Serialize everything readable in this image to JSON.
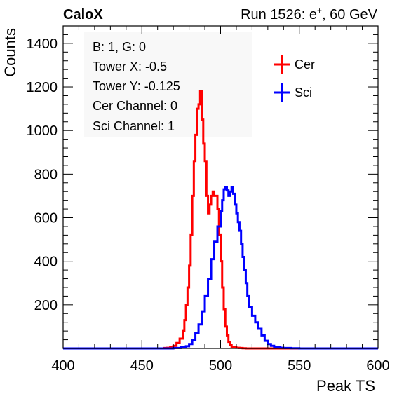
{
  "header": {
    "left": "CaloX",
    "right_pre": "Run 1526: e",
    "right_sup": "+",
    "right_post": ", 60 GeV"
  },
  "info_box": {
    "lines": [
      "B: 1, G: 0",
      "Tower X: -0.5",
      "Tower Y: -0.125",
      "Cer Channel: 0",
      "Sci Channel: 1"
    ]
  },
  "chart_data": {
    "type": "line",
    "title": "",
    "xlabel": "Peak TS",
    "ylabel": "Counts",
    "xlim": [
      400,
      600
    ],
    "ylim": [
      0,
      1480
    ],
    "x_ticks": [
      400,
      450,
      500,
      550,
      600
    ],
    "y_ticks": [
      200,
      400,
      600,
      800,
      1000,
      1200,
      1400
    ],
    "legend_position": "top-right",
    "series": [
      {
        "name": "Cer",
        "color": "#ff0000",
        "x": [
          400,
          402,
          404,
          406,
          408,
          410,
          412,
          414,
          416,
          418,
          420,
          422,
          424,
          426,
          428,
          430,
          432,
          434,
          436,
          438,
          440,
          442,
          444,
          446,
          448,
          450,
          452,
          454,
          456,
          458,
          460,
          462,
          464,
          466,
          468,
          470,
          472,
          474,
          476,
          477,
          478,
          479,
          480,
          481,
          482,
          483,
          484,
          485,
          486,
          487,
          488,
          489,
          490,
          491,
          492,
          493,
          494,
          495,
          496,
          497,
          498,
          499,
          500,
          501,
          502,
          503,
          504,
          505,
          506,
          507,
          508,
          510,
          512,
          514,
          516,
          518,
          520,
          522,
          524,
          526,
          528,
          530,
          532,
          534,
          536,
          538,
          540,
          545,
          550,
          560,
          570,
          580,
          590,
          598
        ],
        "y": [
          0,
          0,
          0,
          0,
          0,
          0,
          0,
          0,
          0,
          0,
          0,
          0,
          0,
          0,
          0,
          0,
          0,
          0,
          0,
          0,
          0,
          0,
          0,
          0,
          0,
          0,
          0,
          0,
          0,
          0,
          0,
          0,
          2,
          3,
          6,
          12,
          25,
          45,
          80,
          130,
          200,
          280,
          380,
          520,
          700,
          860,
          980,
          1100,
          1120,
          1180,
          1050,
          940,
          860,
          700,
          620,
          660,
          700,
          720,
          700,
          700,
          640,
          520,
          400,
          280,
          180,
          100,
          60,
          30,
          15,
          8,
          5,
          3,
          2,
          1,
          0,
          0,
          0,
          0,
          0,
          0,
          0,
          0,
          0,
          0,
          0,
          0,
          0,
          0,
          0,
          0,
          0,
          0,
          0,
          0
        ]
      },
      {
        "name": "Sci",
        "color": "#0000ff",
        "x": [
          400,
          410,
          420,
          430,
          440,
          450,
          460,
          470,
          475,
          478,
          480,
          482,
          484,
          486,
          488,
          490,
          492,
          494,
          496,
          498,
          500,
          501,
          502,
          503,
          504,
          505,
          506,
          507,
          508,
          509,
          510,
          511,
          512,
          513,
          514,
          515,
          516,
          517,
          518,
          520,
          522,
          524,
          526,
          528,
          530,
          532,
          534,
          536,
          538,
          540,
          545,
          550,
          560,
          570,
          580,
          590,
          598
        ],
        "y": [
          0,
          0,
          0,
          0,
          0,
          0,
          0,
          2,
          5,
          10,
          20,
          40,
          70,
          110,
          170,
          240,
          320,
          410,
          490,
          560,
          630,
          680,
          730,
          740,
          725,
          700,
          720,
          740,
          710,
          660,
          620,
          580,
          540,
          480,
          420,
          360,
          300,
          240,
          190,
          150,
          120,
          90,
          60,
          35,
          20,
          12,
          8,
          5,
          3,
          2,
          1,
          0,
          0,
          0,
          0,
          0,
          0
        ]
      }
    ]
  }
}
